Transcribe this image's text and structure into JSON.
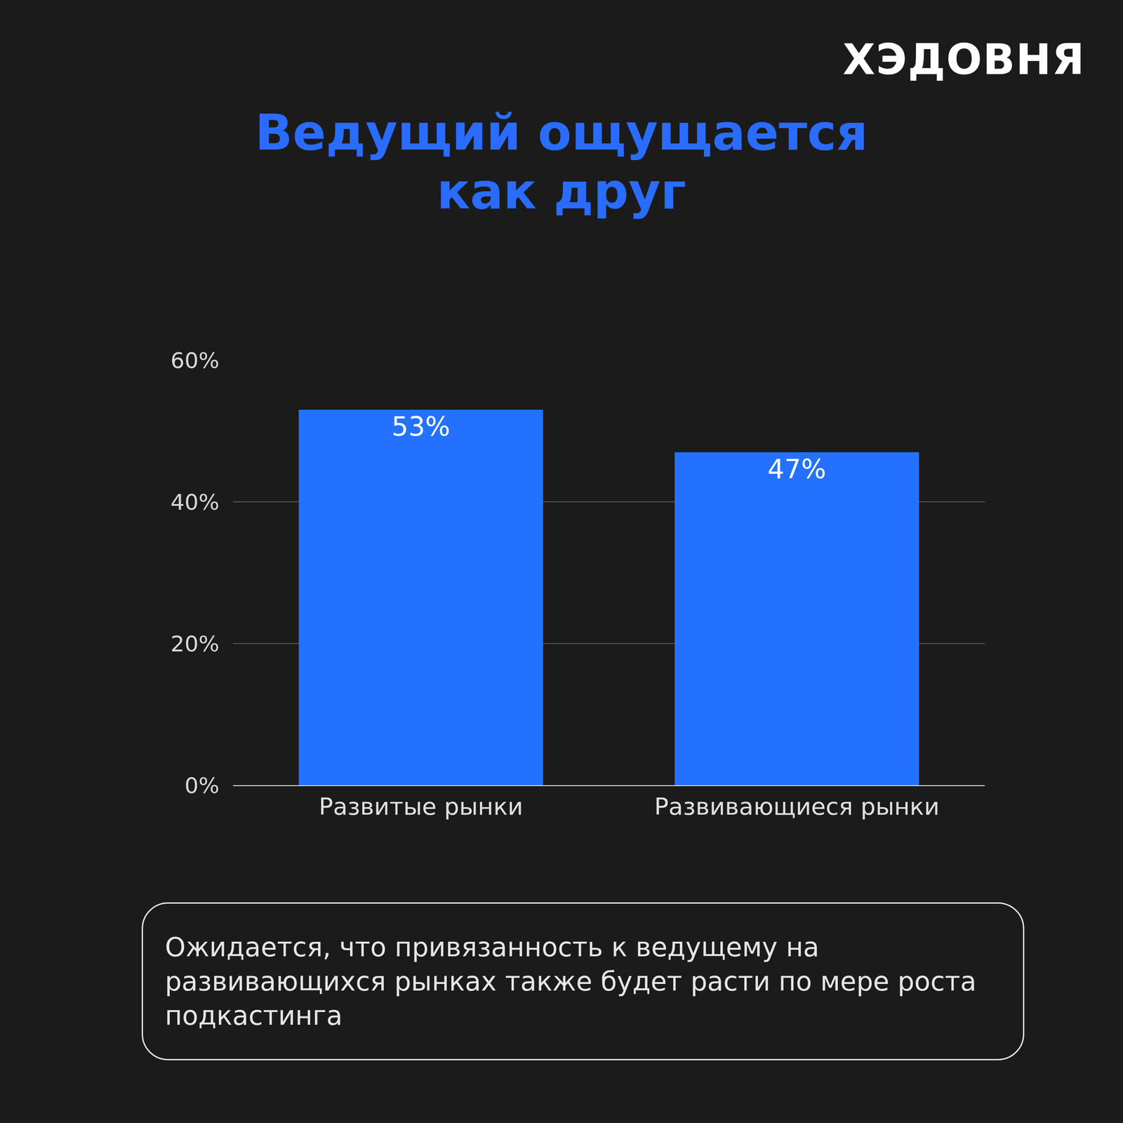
{
  "brand": "ХЭДОВНЯ",
  "note": "Ожидается, что привязанность к ведущему на развивающихся рынках также будет расти по мере роста подкастинга",
  "chart_data": {
    "type": "bar",
    "title": "Ведущий ощущается как друг",
    "categories": [
      "Развитые рынки",
      "Развивающиеся рынки"
    ],
    "values": [
      53,
      47
    ],
    "value_labels": [
      "53%",
      "47%"
    ],
    "data_labels": true,
    "color": "#2571ff",
    "ylim": [
      0,
      60
    ],
    "yticks": [
      {
        "value": 0,
        "label": "0%"
      },
      {
        "value": 20,
        "label": "20%"
      },
      {
        "value": 40,
        "label": "40%"
      },
      {
        "value": 60,
        "label": "60%"
      }
    ],
    "grid": true
  }
}
